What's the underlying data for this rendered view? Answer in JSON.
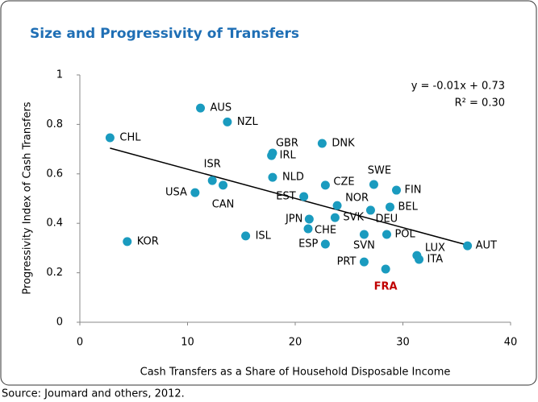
{
  "chart_data": {
    "type": "scatter",
    "title": "Size and Progressivity of Transfers",
    "x_label": "Cash Transfers as a Share of Household Disposable Income",
    "y_label": "Progressivity Index of Cash Transfers",
    "source": "Source: Joumard and others, 2012.",
    "equation": "y = -0.01x + 0.73",
    "r_squared": "R² = 0.30",
    "color": "#1a9bbf",
    "xlim": [
      0,
      40
    ],
    "xticks": [
      0,
      10,
      20,
      30,
      40
    ],
    "ylim": [
      0,
      1
    ],
    "yticks": [
      0,
      0.2,
      0.4,
      0.6,
      0.8,
      1
    ],
    "trendline": {
      "x": [
        2.8,
        35.9
      ],
      "y": [
        0.704,
        0.313
      ]
    },
    "points": [
      {
        "label": "AUS",
        "x": 11.2,
        "y": 0.866
      },
      {
        "label": "NZL",
        "x": 13.7,
        "y": 0.81
      },
      {
        "label": "CHL",
        "x": 2.8,
        "y": 0.746
      },
      {
        "label": "GBR",
        "x": 17.9,
        "y": 0.684
      },
      {
        "label": "IRL",
        "x": 17.8,
        "y": 0.674
      },
      {
        "label": "DNK",
        "x": 22.5,
        "y": 0.723
      },
      {
        "label": "SWE",
        "x": 27.3,
        "y": 0.557
      },
      {
        "label": "ISR",
        "x": 12.3,
        "y": 0.573
      },
      {
        "label": "CAN",
        "x": 13.3,
        "y": 0.554
      },
      {
        "label": "USA",
        "x": 10.7,
        "y": 0.524
      },
      {
        "label": "NLD",
        "x": 17.9,
        "y": 0.586
      },
      {
        "label": "CZE",
        "x": 22.8,
        "y": 0.554
      },
      {
        "label": "FIN",
        "x": 29.4,
        "y": 0.534
      },
      {
        "label": "EST",
        "x": 20.8,
        "y": 0.508
      },
      {
        "label": "NOR",
        "x": 23.9,
        "y": 0.472
      },
      {
        "label": "BEL",
        "x": 28.8,
        "y": 0.466
      },
      {
        "label": "JPN",
        "x": 21.3,
        "y": 0.417
      },
      {
        "label": "SVK",
        "x": 23.7,
        "y": 0.423
      },
      {
        "label": "DEU",
        "x": 27.0,
        "y": 0.453
      },
      {
        "label": "CHE",
        "x": 21.2,
        "y": 0.378
      },
      {
        "label": "KOR",
        "x": 4.4,
        "y": 0.326
      },
      {
        "label": "ISL",
        "x": 15.4,
        "y": 0.349
      },
      {
        "label": "ESP",
        "x": 22.8,
        "y": 0.316
      },
      {
        "label": "SVN",
        "x": 26.4,
        "y": 0.355
      },
      {
        "label": "POL",
        "x": 28.5,
        "y": 0.355
      },
      {
        "label": "LUX",
        "x": 31.3,
        "y": 0.27
      },
      {
        "label": "ITA",
        "x": 31.5,
        "y": 0.254
      },
      {
        "label": "AUT",
        "x": 36.0,
        "y": 0.309
      },
      {
        "label": "PRT",
        "x": 26.4,
        "y": 0.244
      },
      {
        "label": "FRA",
        "x": 28.4,
        "y": 0.215,
        "label_color": "#c00000"
      }
    ]
  }
}
